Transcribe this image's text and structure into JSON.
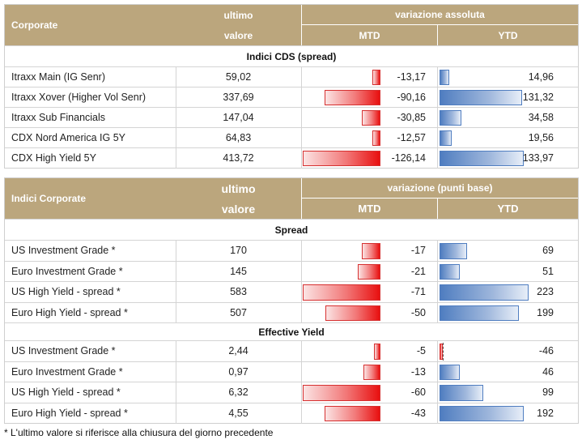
{
  "table1": {
    "header": {
      "title": "Corporate",
      "col_value_line1": "ultimo",
      "col_value_line2": "valore",
      "group_label": "variazione assoluta",
      "mtd": "MTD",
      "ytd": "YTD"
    },
    "section_title": "Indici CDS (spread)",
    "rows": [
      {
        "name": "Itraxx Main (IG Senr)",
        "value": "59,02",
        "mtd": "-13,17",
        "ytd": "14,96",
        "mtd_num": -13.17,
        "ytd_num": 14.96
      },
      {
        "name": "Itraxx Xover (Higher Vol Senr)",
        "value": "337,69",
        "mtd": "-90,16",
        "ytd": "131,32",
        "mtd_num": -90.16,
        "ytd_num": 131.32
      },
      {
        "name": "Itraxx Sub Financials",
        "value": "147,04",
        "mtd": "-30,85",
        "ytd": "34,58",
        "mtd_num": -30.85,
        "ytd_num": 34.58
      },
      {
        "name": "CDX Nord America IG 5Y",
        "value": "64,83",
        "mtd": "-12,57",
        "ytd": "19,56",
        "mtd_num": -12.57,
        "ytd_num": 19.56
      },
      {
        "name": "CDX High Yield 5Y",
        "value": "413,72",
        "mtd": "-126,14",
        "ytd": "133,97",
        "mtd_num": -126.14,
        "ytd_num": 133.97
      }
    ]
  },
  "table2": {
    "header": {
      "title": "Indici Corporate",
      "col_value_line1": "ultimo",
      "col_value_line2": "valore",
      "group_label": "variazione (punti base)",
      "mtd": "MTD",
      "ytd": "YTD"
    },
    "spread_title": "Spread",
    "spread_rows": [
      {
        "name": "US Investment Grade *",
        "value": "170",
        "mtd": "-17",
        "ytd": "69",
        "mtd_num": -17,
        "ytd_num": 69
      },
      {
        "name": "Euro Investment Grade *",
        "value": "145",
        "mtd": "-21",
        "ytd": "51",
        "mtd_num": -21,
        "ytd_num": 51
      },
      {
        "name": "US High Yield - spread *",
        "value": "583",
        "mtd": "-71",
        "ytd": "223",
        "mtd_num": -71,
        "ytd_num": 223
      },
      {
        "name": "Euro High Yield - spread *",
        "value": "507",
        "mtd": "-50",
        "ytd": "199",
        "mtd_num": -50,
        "ytd_num": 199
      }
    ],
    "yield_title": "Effective Yield",
    "yield_rows": [
      {
        "name": "US Investment Grade *",
        "value": "2,44",
        "mtd": "-5",
        "ytd": "-46",
        "mtd_num": -5,
        "ytd_num": -46
      },
      {
        "name": "Euro Investment Grade *",
        "value": "0,97",
        "mtd": "-13",
        "ytd": "46",
        "mtd_num": -13,
        "ytd_num": 46
      },
      {
        "name": "US High Yield - spread *",
        "value": "6,32",
        "mtd": "-60",
        "ytd": "99",
        "mtd_num": -60,
        "ytd_num": 99
      },
      {
        "name": "Euro High Yield - spread *",
        "value": "4,55",
        "mtd": "-43",
        "ytd": "192",
        "mtd_num": -43,
        "ytd_num": 192
      }
    ]
  },
  "footnote": "* L'ultimo valore si riferisce alla chiusura del giorno precedente",
  "colors": {
    "header_gold": "#bba67d",
    "neg_bar": "#e81010",
    "pos_bar": "#4f7dc0"
  }
}
